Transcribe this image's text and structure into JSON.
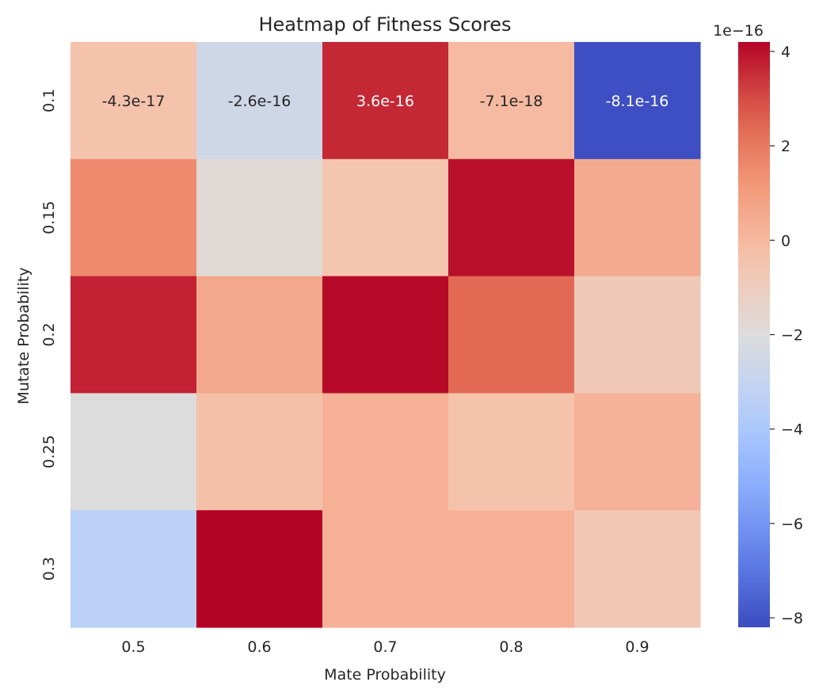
{
  "chart_data": {
    "type": "heatmap",
    "title": "Heatmap of Fitness Scores",
    "xlabel": "Mate Probability",
    "ylabel": "Mutate Probability",
    "x_categories": [
      "0.5",
      "0.6",
      "0.7",
      "0.8",
      "0.9"
    ],
    "y_categories": [
      "0.1",
      "0.15",
      "0.2",
      "0.25",
      "0.3"
    ],
    "values": [
      [
        -0.43,
        -2.6,
        3.6,
        -0.071,
        -8.1
      ],
      [
        1.5,
        -1.8,
        -0.5,
        4.0,
        0.5
      ],
      [
        3.7,
        0.6,
        4.1,
        2.4,
        -0.8
      ],
      [
        -2.0,
        -0.3,
        0.3,
        -0.4,
        0.2
      ],
      [
        -3.4,
        4.2,
        0.3,
        0.3,
        -0.7
      ]
    ],
    "value_multiplier": "1e-16",
    "cell_labels": [
      [
        "-4.3e-17",
        "-2.6e-16",
        "3.6e-16",
        "-7.1e-18",
        "-8.1e-16"
      ],
      [
        "",
        "",
        "",
        "",
        ""
      ],
      [
        "",
        "",
        "",
        "",
        ""
      ],
      [
        "",
        "",
        "",
        "",
        ""
      ],
      [
        "",
        "",
        "",
        "",
        ""
      ]
    ],
    "colorbar": {
      "colormap": "coolwarm",
      "min": -8.2,
      "max": 4.2,
      "ticks": [
        4,
        2,
        0,
        -2,
        -4,
        -6,
        -8
      ],
      "tick_labels": [
        "4",
        "2",
        "0",
        "−2",
        "−4",
        "−6",
        "−8"
      ],
      "offset_label": "1e−16"
    }
  }
}
